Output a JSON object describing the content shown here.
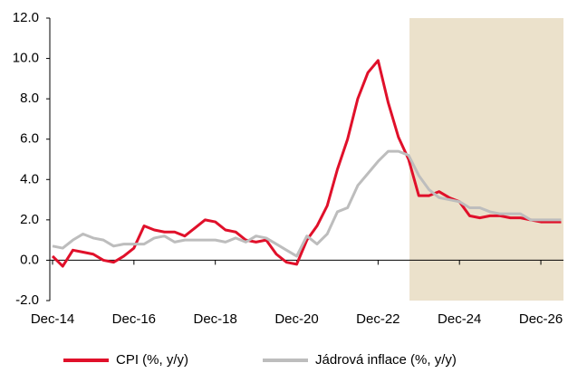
{
  "chart_data": {
    "type": "line",
    "categories": [
      "Dec-14",
      null,
      null,
      null,
      null,
      null,
      null,
      null,
      "Dec-16",
      null,
      null,
      null,
      null,
      null,
      null,
      null,
      "Dec-18",
      null,
      null,
      null,
      null,
      null,
      null,
      null,
      "Dec-20",
      null,
      null,
      null,
      null,
      null,
      null,
      null,
      "Dec-22",
      null,
      null,
      null,
      null,
      null,
      null,
      null,
      "Dec-24",
      null,
      null,
      null,
      null,
      null,
      null,
      null,
      "Dec-26",
      null,
      null
    ],
    "series": [
      {
        "name": "CPI (%, y/y)",
        "color": "#e0102a",
        "values": [
          0.2,
          -0.3,
          0.5,
          0.4,
          0.3,
          0.0,
          -0.1,
          0.2,
          0.6,
          1.7,
          1.5,
          1.4,
          1.4,
          1.2,
          1.6,
          2.0,
          1.9,
          1.5,
          1.4,
          1.0,
          0.9,
          1.0,
          0.3,
          -0.1,
          -0.2,
          1.0,
          1.7,
          2.7,
          4.5,
          6.0,
          8.0,
          9.3,
          9.9,
          7.8,
          6.1,
          5.0,
          3.2,
          3.2,
          3.4,
          3.1,
          2.9,
          2.2,
          2.1,
          2.2,
          2.2,
          2.1,
          2.1,
          2.0,
          1.9,
          1.9,
          1.9
        ]
      },
      {
        "name": "Jádrová inflace (%, y/y)",
        "color": "#bdbdbd",
        "values": [
          0.7,
          0.6,
          1.0,
          1.3,
          1.1,
          1.0,
          0.7,
          0.8,
          0.8,
          0.8,
          1.1,
          1.2,
          0.9,
          1.0,
          1.0,
          1.0,
          1.0,
          0.9,
          1.1,
          0.9,
          1.2,
          1.1,
          0.8,
          0.5,
          0.2,
          1.2,
          0.8,
          1.3,
          2.4,
          2.6,
          3.7,
          4.3,
          4.9,
          5.4,
          5.4,
          5.2,
          4.2,
          3.5,
          3.1,
          3.0,
          2.9,
          2.6,
          2.6,
          2.4,
          2.3,
          2.3,
          2.3,
          2.0,
          2.0,
          2.0,
          2.0
        ]
      }
    ],
    "ylim": [
      -2,
      12
    ],
    "yticks": [
      {
        "value": -2,
        "label": "-2.0"
      },
      {
        "value": 0,
        "label": "0.0"
      },
      {
        "value": 2,
        "label": "2.0"
      },
      {
        "value": 4,
        "label": "4.0"
      },
      {
        "value": 6,
        "label": "6.0"
      },
      {
        "value": 8,
        "label": "8.0"
      },
      {
        "value": 10,
        "label": "10.0"
      },
      {
        "value": 12,
        "label": "12.0"
      }
    ],
    "shaded_from": 35,
    "shade_color": "#ebe1cb",
    "legend": "bottom"
  }
}
